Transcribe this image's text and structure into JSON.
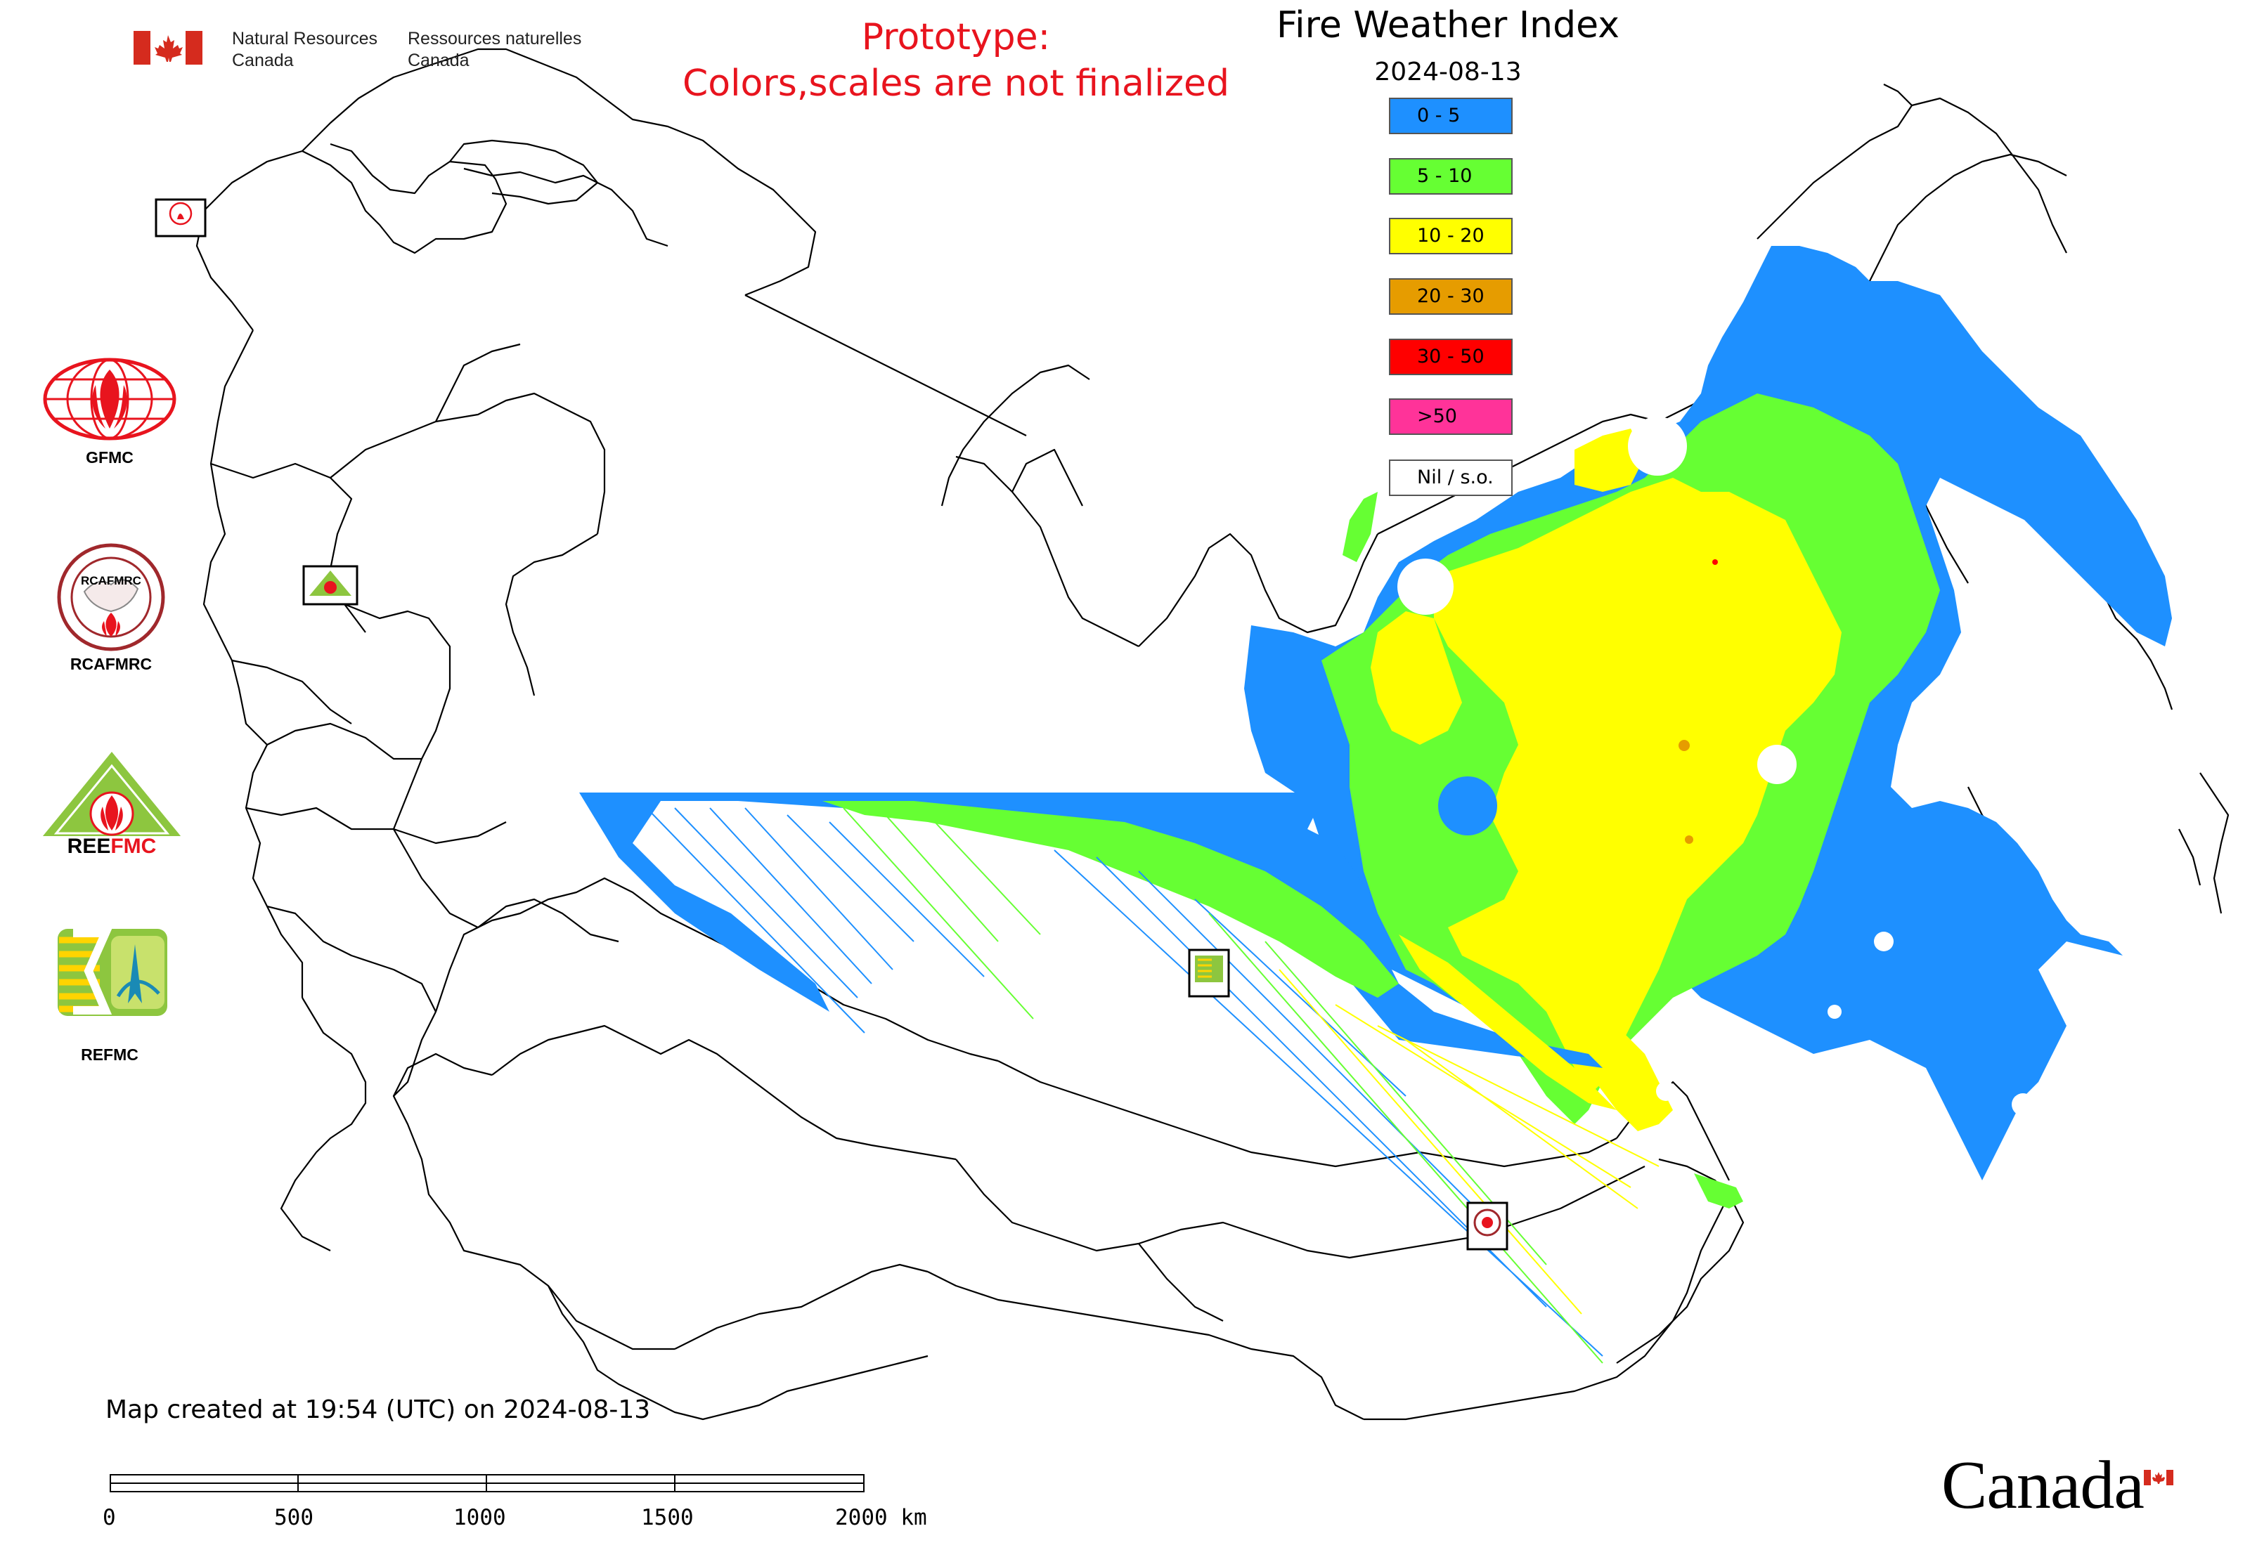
{
  "header": {
    "org_en_line1": "Natural Resources",
    "org_en_line2": "Canada",
    "org_fr_line1": "Ressources naturelles",
    "org_fr_line2": "Canada",
    "prototype_line1": "Prototype:",
    "prototype_line2": "Colors,scales are not finalized"
  },
  "map": {
    "title": "Fire Weather Index",
    "date": "2024-08-13"
  },
  "legend": {
    "items": [
      {
        "label": "0 - 5",
        "color": "#1e90ff"
      },
      {
        "label": "5 - 10",
        "color": "#66ff33"
      },
      {
        "label": "10 - 20",
        "color": "#ffff00"
      },
      {
        "label": "20 - 30",
        "color": "#e69c00"
      },
      {
        "label": "30 - 50",
        "color": "#ff0000"
      },
      {
        "label": ">50",
        "color": "#ff3399"
      },
      {
        "label": "Nil / s.o.",
        "color": "#ffffff"
      }
    ]
  },
  "logos": {
    "gfmc_label": "GFMC",
    "rcafmrc_label": "RCAFMRC",
    "reefmc_text": "REEFMC",
    "refmc_label": "REFMC",
    "rcafmrc_ring_text": "RCAFMRC"
  },
  "map_markers": {
    "gfmc": "GFMC",
    "reefmc": "REEFMC",
    "refmc": "REFMC",
    "rcafmrc": "RCAFMRC"
  },
  "footer": {
    "created": "Map created at 19:54 (UTC) on 2024-08-13",
    "scale_labels": [
      "0",
      "500",
      "1000",
      "1500",
      "2000 km"
    ],
    "wordmark": "Canada"
  },
  "colors": {
    "accent_red": "#e8141e",
    "flag_red": "#d52b1e"
  }
}
